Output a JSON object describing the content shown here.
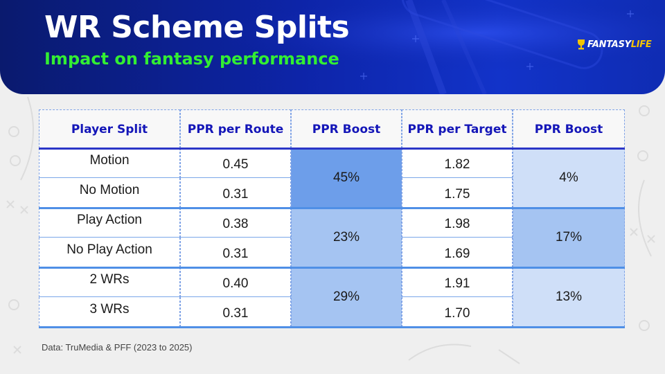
{
  "header": {
    "title": "WR Scheme Splits",
    "subtitle": "Impact on fantasy performance",
    "logo_main": "FANTASY",
    "logo_accent": "LIFE"
  },
  "colors": {
    "header_blue": "#0d24a8",
    "subtitle_green": "#33ee33",
    "header_text_blue": "#1416b8",
    "boost_strong": "#6d9eea",
    "boost_medium": "#a5c4f2",
    "boost_light": "#cfdff8"
  },
  "chart_data": {
    "type": "table",
    "columns": [
      "Player Split",
      "PPR per Route",
      "PPR Boost",
      "PPR per Target",
      "PPR Boost"
    ],
    "rows": [
      [
        "Motion",
        "0.45",
        "45%",
        "1.82",
        "4%"
      ],
      [
        "No Motion",
        "0.31",
        "45%",
        "1.75",
        "4%"
      ],
      [
        "Play Action",
        "0.38",
        "23%",
        "1.98",
        "17%"
      ],
      [
        "No Play Action",
        "0.31",
        "23%",
        "1.69",
        "17%"
      ],
      [
        "2 WRs",
        "0.40",
        "29%",
        "1.91",
        "13%"
      ],
      [
        "3 WRs",
        "0.31",
        "29%",
        "1.70",
        "13%"
      ]
    ],
    "groups": [
      {
        "route_boost": "45%",
        "route_boost_shade": "strong",
        "target_boost": "4%",
        "target_boost_shade": "light"
      },
      {
        "route_boost": "23%",
        "route_boost_shade": "medium",
        "target_boost": "17%",
        "target_boost_shade": "medium"
      },
      {
        "route_boost": "29%",
        "route_boost_shade": "medium",
        "target_boost": "13%",
        "target_boost_shade": "light"
      }
    ]
  },
  "source": "Data: TruMedia & PFF (2023 to 2025)"
}
